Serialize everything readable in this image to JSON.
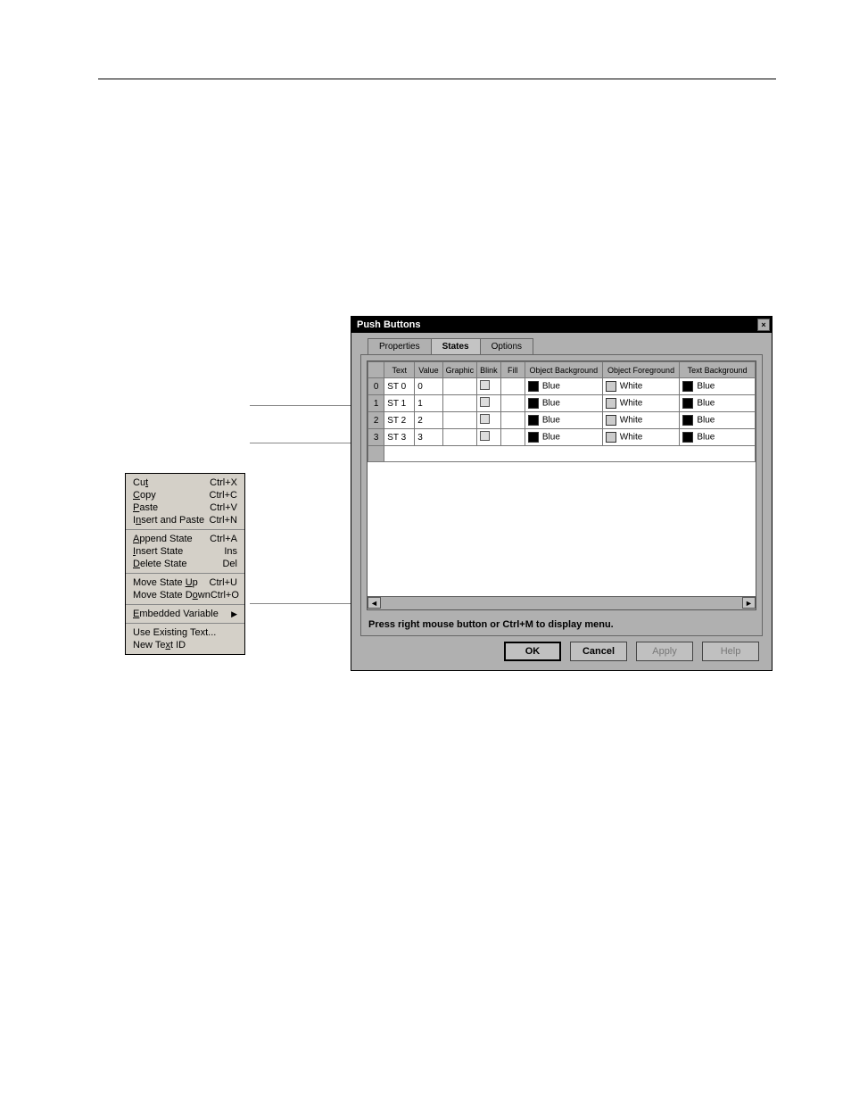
{
  "dialog": {
    "title": "Push Buttons",
    "tabs": [
      "Properties",
      "States",
      "Options"
    ],
    "active_tab": 1,
    "columns": [
      "",
      "Text",
      "Value",
      "Graphic",
      "Blink",
      "Fill",
      "Object Background",
      "Object Foreground",
      "Text Background"
    ],
    "rows": [
      {
        "n": "0",
        "text": "ST 0",
        "value": "0",
        "obj_bg": "Blue",
        "obj_fg": "White",
        "txt_bg": "Blue",
        "obj_bg_color": "#000000",
        "obj_fg_color": "#cccccc",
        "txt_bg_color": "#000000"
      },
      {
        "n": "1",
        "text": "ST 1",
        "value": "1",
        "obj_bg": "Blue",
        "obj_fg": "White",
        "txt_bg": "Blue",
        "obj_bg_color": "#000000",
        "obj_fg_color": "#cccccc",
        "txt_bg_color": "#000000"
      },
      {
        "n": "2",
        "text": "ST 2",
        "value": "2",
        "obj_bg": "Blue",
        "obj_fg": "White",
        "txt_bg": "Blue",
        "obj_bg_color": "#000000",
        "obj_fg_color": "#cccccc",
        "txt_bg_color": "#000000"
      },
      {
        "n": "3",
        "text": "ST 3",
        "value": "3",
        "obj_bg": "Blue",
        "obj_fg": "White",
        "txt_bg": "Blue",
        "obj_bg_color": "#000000",
        "obj_fg_color": "#cccccc",
        "txt_bg_color": "#000000"
      }
    ],
    "hint": "Press right mouse button or Ctrl+M to display menu.",
    "buttons": {
      "ok": "OK",
      "cancel": "Cancel",
      "apply": "Apply",
      "help": "Help"
    }
  },
  "context_menu": {
    "sections": [
      [
        {
          "label": "Cu<u>t</u>",
          "shortcut": "Ctrl+X"
        },
        {
          "label": "<u>C</u>opy",
          "shortcut": "Ctrl+C"
        },
        {
          "label": "<u>P</u>aste",
          "shortcut": "Ctrl+V"
        },
        {
          "label": "I<u>n</u>sert and Paste",
          "shortcut": "Ctrl+N"
        }
      ],
      [
        {
          "label": "<u>A</u>ppend State",
          "shortcut": "Ctrl+A"
        },
        {
          "label": "<u>I</u>nsert State",
          "shortcut": "Ins"
        },
        {
          "label": "<u>D</u>elete State",
          "shortcut": "Del"
        }
      ],
      [
        {
          "label": "Move State <u>U</u>p",
          "shortcut": "Ctrl+U"
        },
        {
          "label": "Move State D<u>o</u>wn",
          "shortcut": "Ctrl+O"
        }
      ],
      [
        {
          "label": "<u>E</u>mbedded Variable",
          "shortcut": "",
          "submenu": true
        }
      ],
      [
        {
          "label": "Use Existing Text...",
          "shortcut": ""
        },
        {
          "label": "New Te<u>x</u>t ID",
          "shortcut": ""
        }
      ]
    ]
  }
}
